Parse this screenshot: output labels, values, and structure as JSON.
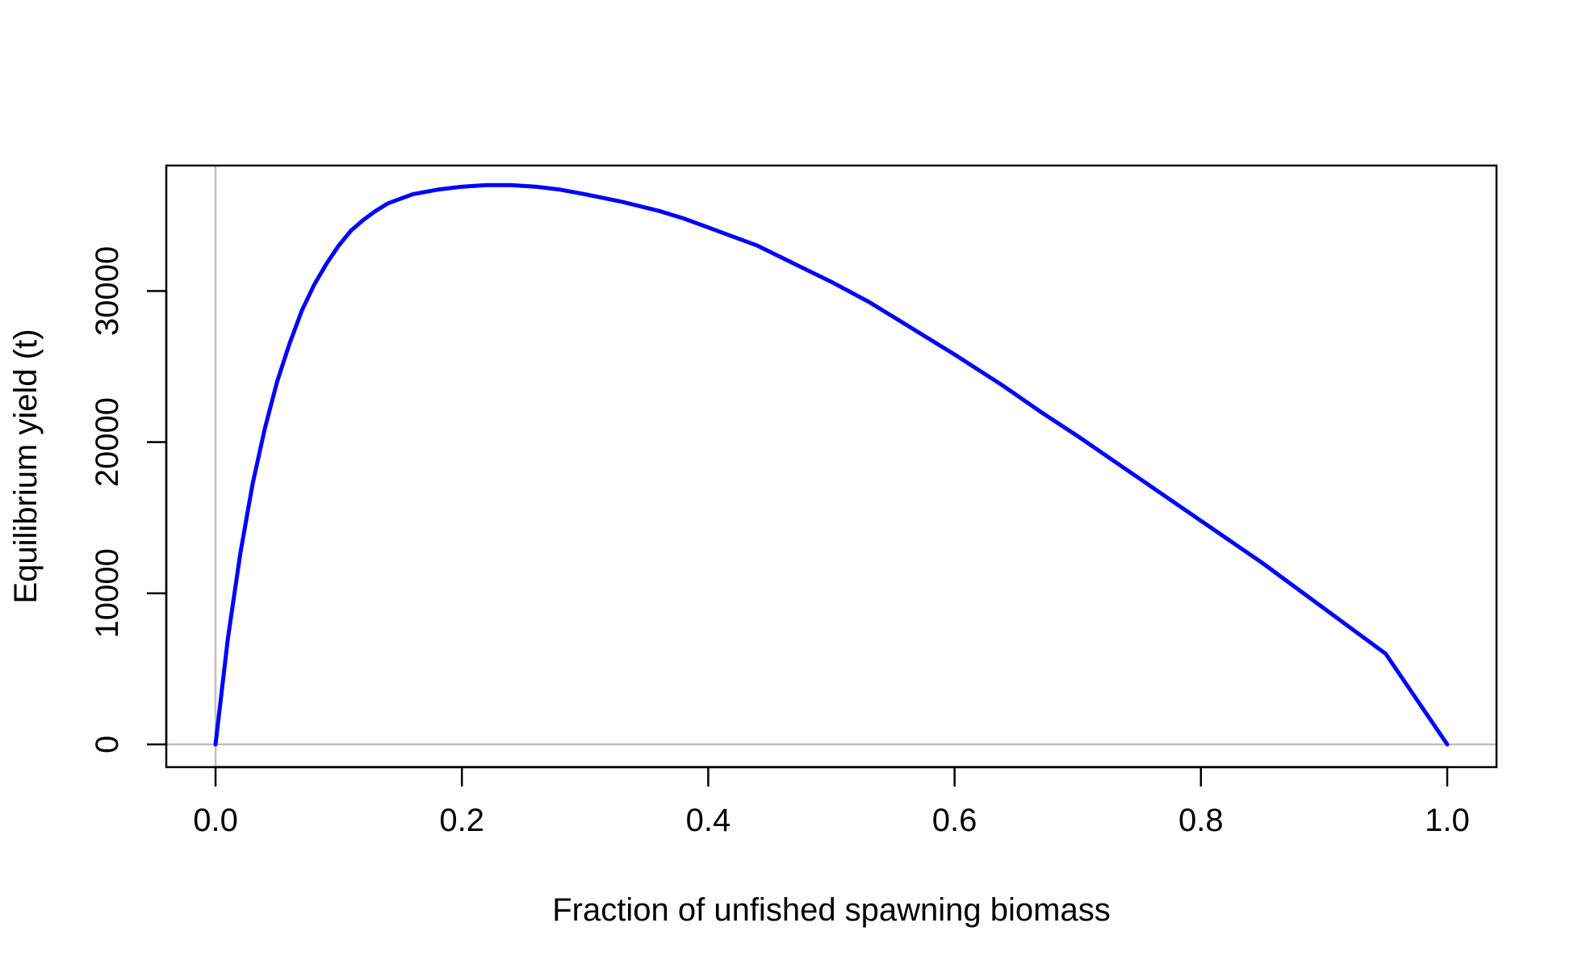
{
  "chart_data": {
    "type": "line",
    "title": "",
    "xlabel": "Fraction of unfished spawning biomass",
    "ylabel": "Equilibrium yield (t)",
    "xlim": [
      -0.04,
      1.04
    ],
    "ylim": [
      -1500,
      38300
    ],
    "x_ticks": [
      0.0,
      0.2,
      0.4,
      0.6,
      0.8,
      1.0
    ],
    "x_tick_labels": [
      "0.0",
      "0.2",
      "0.4",
      "0.6",
      "0.8",
      "1.0"
    ],
    "y_ticks": [
      0,
      10000,
      20000,
      30000
    ],
    "y_tick_labels": [
      "0",
      "10000",
      "20000",
      "30000"
    ],
    "reference_lines": {
      "x": 0,
      "y": 0,
      "color": "#bebebe"
    },
    "grid": false,
    "legend": "none",
    "series": [
      {
        "color": "#0000ff",
        "x": [
          0.0,
          0.01,
          0.02,
          0.03,
          0.04,
          0.05,
          0.06,
          0.07,
          0.08,
          0.09,
          0.1,
          0.11,
          0.12,
          0.13,
          0.14,
          0.15,
          0.16,
          0.18,
          0.2,
          0.22,
          0.24,
          0.26,
          0.28,
          0.3,
          0.33,
          0.36,
          0.38,
          0.4,
          0.44,
          0.47,
          0.5,
          0.53,
          0.56,
          0.6,
          0.64,
          0.67,
          0.7,
          0.75,
          0.8,
          0.85,
          0.9,
          0.95,
          1.0
        ],
        "y": [
          0,
          7000,
          12600,
          17200,
          20900,
          24000,
          26500,
          28700,
          30400,
          31800,
          33000,
          34000,
          34700,
          35300,
          35800,
          36100,
          36400,
          36700,
          36900,
          37000,
          37000,
          36900,
          36700,
          36400,
          35900,
          35300,
          34800,
          34200,
          33000,
          31800,
          30600,
          29300,
          27800,
          25800,
          23700,
          22000,
          20400,
          17600,
          14800,
          12000,
          9000,
          6000,
          0
        ]
      }
    ]
  }
}
